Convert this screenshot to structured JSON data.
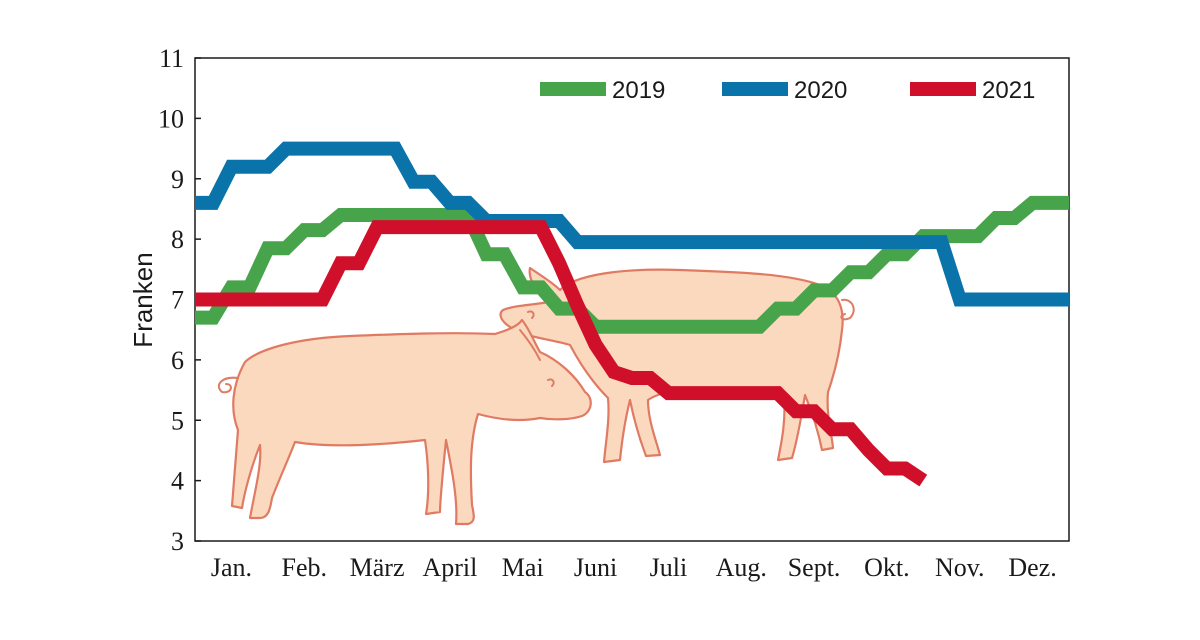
{
  "chart_data": {
    "type": "line",
    "title": "",
    "xlabel": "",
    "ylabel": "Franken",
    "categories": [
      "Jan.",
      "Feb.",
      "März",
      "April",
      "Mai",
      "Juni",
      "Juli",
      "Aug.",
      "Sept.",
      "Okt.",
      "Nov.",
      "Dez."
    ],
    "yticks": [
      "3",
      "4",
      "5",
      "6",
      "7",
      "8",
      "9",
      "10",
      "11"
    ],
    "ylim": [
      3,
      11
    ],
    "xlim": [
      1,
      13
    ],
    "grid": false,
    "legend_position": "top-right",
    "series": [
      {
        "name": "2019",
        "color": "#48a44a",
        "x": [
          1,
          1.25,
          1.5,
          1.75,
          2,
          2.25,
          2.5,
          2.75,
          3,
          3.25,
          3.5,
          3.75,
          4,
          4.25,
          4.5,
          4.75,
          5,
          5.25,
          5.5,
          5.75,
          6,
          6.25,
          6.5,
          6.75,
          7,
          7.25,
          7.5,
          7.75,
          8,
          8.25,
          8.5,
          8.75,
          9,
          9.25,
          9.5,
          9.75,
          10,
          10.25,
          10.5,
          10.75,
          11,
          11.25,
          11.5,
          11.75,
          12,
          12.25,
          12.5,
          12.75,
          13
        ],
        "values": [
          6.7,
          6.7,
          7.2,
          7.2,
          7.85,
          7.85,
          8.15,
          8.15,
          8.4,
          8.4,
          8.4,
          8.4,
          8.4,
          8.4,
          8.4,
          8.4,
          7.75,
          7.75,
          7.2,
          7.2,
          6.85,
          6.85,
          6.55,
          6.55,
          6.55,
          6.55,
          6.55,
          6.55,
          6.55,
          6.55,
          6.55,
          6.55,
          6.85,
          6.85,
          7.15,
          7.15,
          7.45,
          7.45,
          7.75,
          7.75,
          8.05,
          8.05,
          8.05,
          8.05,
          8.35,
          8.35,
          8.6,
          8.6,
          8.6
        ]
      },
      {
        "name": "2020",
        "color": "#0a73a9",
        "x": [
          1,
          1.25,
          1.5,
          1.75,
          2,
          2.25,
          2.5,
          2.75,
          3,
          3.25,
          3.5,
          3.75,
          4,
          4.25,
          4.5,
          4.75,
          5,
          5.25,
          5.5,
          5.75,
          6,
          6.25,
          6.5,
          6.75,
          7,
          7.25,
          7.5,
          7.75,
          8,
          8.25,
          8.5,
          8.75,
          9,
          9.25,
          9.5,
          9.75,
          10,
          10.25,
          10.5,
          10.75,
          11,
          11.25,
          11.5,
          11.75,
          12,
          12.25,
          12.5,
          12.75,
          13
        ],
        "values": [
          8.6,
          8.6,
          9.2,
          9.2,
          9.2,
          9.5,
          9.5,
          9.5,
          9.5,
          9.5,
          9.5,
          9.5,
          8.95,
          8.95,
          8.6,
          8.6,
          8.3,
          8.3,
          8.3,
          8.3,
          8.3,
          7.95,
          7.95,
          7.95,
          7.95,
          7.95,
          7.95,
          7.95,
          7.95,
          7.95,
          7.95,
          7.95,
          7.95,
          7.95,
          7.95,
          7.95,
          7.95,
          7.95,
          7.95,
          7.95,
          7.95,
          7.95,
          7.0,
          7.0,
          7.0,
          7.0,
          7.0,
          7.0,
          7.0
        ]
      },
      {
        "name": "2021",
        "color": "#d0102b",
        "x": [
          1,
          1.25,
          1.5,
          1.75,
          2,
          2.25,
          2.5,
          2.75,
          3,
          3.25,
          3.5,
          3.75,
          4,
          4.25,
          4.5,
          4.75,
          5,
          5.25,
          5.5,
          5.75,
          6,
          6.25,
          6.5,
          6.75,
          7,
          7.25,
          7.5,
          7.75,
          8,
          8.25,
          8.5,
          8.75,
          9,
          9.25,
          9.5,
          9.75,
          10,
          10.25,
          10.5,
          10.75,
          11
        ],
        "values": [
          7.0,
          7.0,
          7.0,
          7.0,
          7.0,
          7.0,
          7.0,
          7.0,
          7.6,
          7.6,
          8.2,
          8.2,
          8.2,
          8.2,
          8.2,
          8.2,
          8.2,
          8.2,
          8.2,
          8.2,
          7.6,
          6.9,
          6.25,
          5.8,
          5.7,
          5.7,
          5.45,
          5.45,
          5.45,
          5.45,
          5.45,
          5.45,
          5.45,
          5.15,
          5.15,
          4.85,
          4.85,
          4.5,
          4.2,
          4.2,
          4.0
        ]
      }
    ]
  }
}
